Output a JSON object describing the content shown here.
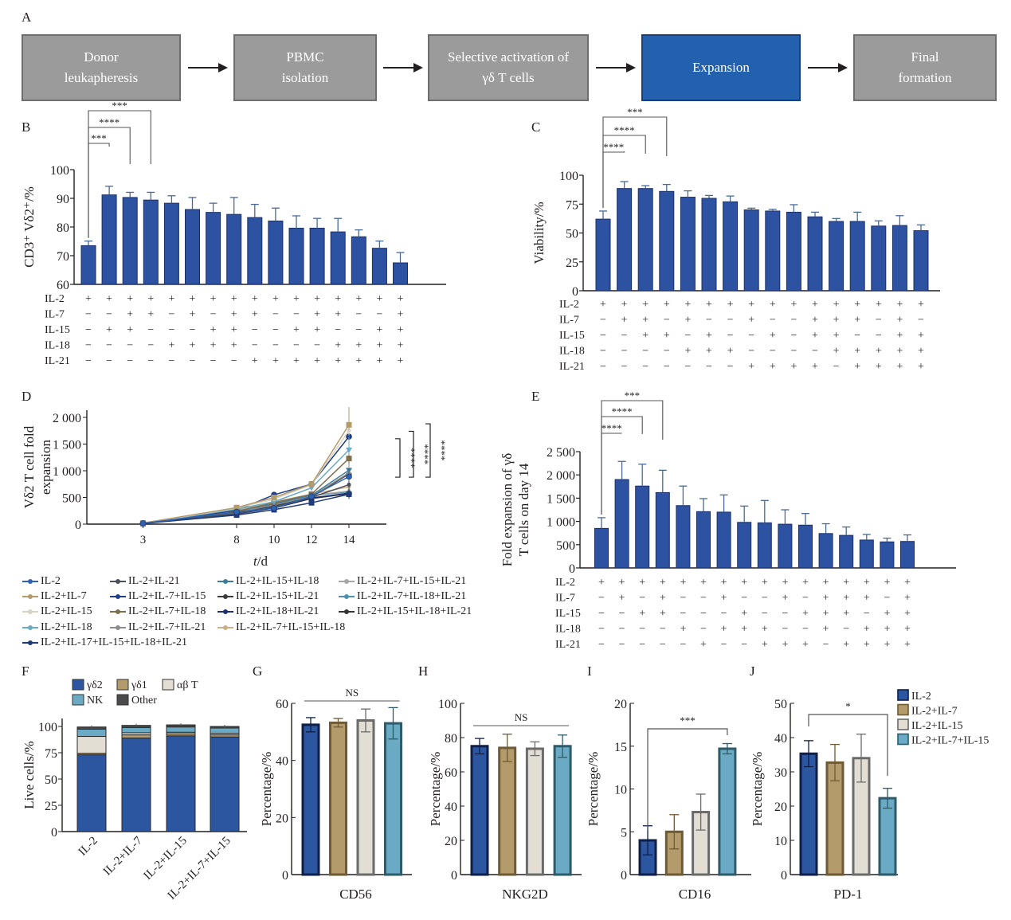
{
  "panel_letters": [
    "A",
    "B",
    "C",
    "D",
    "E",
    "F",
    "G",
    "H",
    "I",
    "J"
  ],
  "flow": {
    "steps": [
      {
        "label": "Donor\nleukapheresis",
        "active": false
      },
      {
        "label": "PBMC\nisolation",
        "active": false
      },
      {
        "label": "Selective activation of\nγδ T cells",
        "active": false
      },
      {
        "label": "Expansion",
        "active": true
      },
      {
        "label": "Final\nformation",
        "active": false
      }
    ]
  },
  "colors": {
    "bar_blue": "#2e52a2",
    "bar_edge": "#1a2f66",
    "err": "#4a6a96",
    "gd2": "#2c56a0",
    "gd1": "#b49b6c",
    "ab": "#e2ded4",
    "nk": "#6aaac4",
    "other": "#4b4b4b",
    "flow_gray": "#9b9b9b",
    "flow_blue": "#2360ae"
  },
  "row_labels": [
    "IL-2",
    "IL-7",
    "IL-15",
    "IL-18",
    "IL-21"
  ],
  "chart_data": [
    {
      "id": "B",
      "type": "bar",
      "ylabel": "CD3⁺ Vδ2⁺/%",
      "ylim": [
        60,
        100
      ],
      "yticks": [
        60,
        70,
        80,
        90,
        100
      ],
      "values": [
        73.5,
        91.2,
        90.3,
        89.4,
        88.3,
        86.1,
        85.1,
        84.4,
        83.3,
        82.1,
        79.6,
        79.6,
        78.3,
        76.6,
        72.6,
        67.5
      ],
      "errors": [
        1.6,
        3.0,
        1.8,
        2.7,
        2.6,
        4.2,
        3.2,
        5.9,
        4.6,
        4.5,
        4.3,
        3.4,
        4.7,
        2.4,
        2.5,
        3.6
      ],
      "conditions": {
        "IL-2": [
          "+",
          "+",
          "+",
          "+",
          "+",
          "+",
          "+",
          "+",
          "+",
          "+",
          "+",
          "+",
          "+",
          "+",
          "+",
          "+"
        ],
        "IL-7": [
          "−",
          "−",
          "+",
          "+",
          "−",
          "+",
          "−",
          "+",
          "+",
          "−",
          "−",
          "+",
          "+",
          "−",
          "−",
          "+"
        ],
        "IL-15": [
          "−",
          "+",
          "+",
          "−",
          "−",
          "−",
          "+",
          "+",
          "−",
          "−",
          "+",
          "+",
          "−",
          "−",
          "+",
          "+"
        ],
        "IL-18": [
          "−",
          "−",
          "−",
          "−",
          "+",
          "+",
          "+",
          "+",
          "−",
          "−",
          "−",
          "−",
          "+",
          "+",
          "+",
          "+"
        ],
        "IL-21": [
          "−",
          "−",
          "−",
          "−",
          "−",
          "−",
          "−",
          "−",
          "+",
          "+",
          "+",
          "+",
          "+",
          "+",
          "+",
          "+"
        ]
      },
      "significance": [
        {
          "from": 0,
          "to": 1,
          "label": "***"
        },
        {
          "from": 0,
          "to": 2,
          "label": "****"
        },
        {
          "from": 0,
          "to": 3,
          "label": "***"
        }
      ]
    },
    {
      "id": "C",
      "type": "bar",
      "ylabel": "Viability/%",
      "ylim": [
        0,
        100
      ],
      "yticks": [
        0,
        25,
        50,
        75,
        100
      ],
      "values": [
        62,
        88.5,
        88.5,
        86,
        81,
        80,
        77,
        70,
        69,
        68,
        64,
        60,
        60,
        56,
        56.5,
        52
      ],
      "errors": [
        7,
        6,
        2.5,
        6,
        5.5,
        2.5,
        5,
        1.5,
        1.5,
        6.5,
        4,
        2.5,
        8,
        4.5,
        8.5,
        5
      ],
      "conditions": {
        "IL-2": [
          "+",
          "+",
          "+",
          "+",
          "+",
          "+",
          "+",
          "+",
          "+",
          "+",
          "+",
          "+",
          "+",
          "+",
          "+",
          "+"
        ],
        "IL-7": [
          "−",
          "+",
          "+",
          "−",
          "+",
          "−",
          "−",
          "+",
          "−",
          "−",
          "+",
          "+",
          "+",
          "−",
          "+",
          "−"
        ],
        "IL-15": [
          "−",
          "−",
          "+",
          "+",
          "−",
          "+",
          "−",
          "−",
          "+",
          "−",
          "+",
          "+",
          "−",
          "−",
          "+",
          "+"
        ],
        "IL-18": [
          "−",
          "−",
          "−",
          "−",
          "+",
          "+",
          "+",
          "−",
          "−",
          "−",
          "−",
          "+",
          "+",
          "+",
          "+",
          "+"
        ],
        "IL-21": [
          "−",
          "−",
          "−",
          "−",
          "−",
          "−",
          "−",
          "+",
          "+",
          "+",
          "+",
          "−",
          "+",
          "+",
          "+",
          "+"
        ]
      },
      "significance": [
        {
          "from": 0,
          "to": 1,
          "label": "****"
        },
        {
          "from": 0,
          "to": 2,
          "label": "****"
        },
        {
          "from": 0,
          "to": 3,
          "label": "***"
        }
      ]
    },
    {
      "id": "D",
      "type": "line",
      "xlabel": "t/d",
      "ylabel": "Vδ2 T cell fold\nexpansion",
      "x": [
        3,
        8,
        10,
        12,
        14
      ],
      "xlim": [
        0,
        16
      ],
      "ylim": [
        0,
        2000
      ],
      "yticks": [
        0,
        500,
        1000,
        1500,
        2000
      ],
      "ytick_labels": [
        "0",
        "500",
        "1 000",
        "1 500",
        "2 000"
      ],
      "series": [
        {
          "name": "IL-2",
          "marker": "circle",
          "color": "#2d62b0",
          "values": [
            15,
            230,
            300,
            520,
            890
          ]
        },
        {
          "name": "IL-2+IL-7",
          "marker": "square",
          "color": "#b49b6c",
          "values": [
            20,
            310,
            500,
            750,
            1860
          ]
        },
        {
          "name": "IL-2+IL-15",
          "marker": "dash",
          "color": "#d6d2c6",
          "values": [
            18,
            300,
            470,
            740,
            1750
          ]
        },
        {
          "name": "IL-2+IL-18",
          "marker": "triangle-down",
          "color": "#6aaac4",
          "values": [
            16,
            280,
            420,
            680,
            1390
          ]
        },
        {
          "name": "IL-2+IL-17+IL-15+IL-18+IL-21",
          "marker": "square-dot",
          "color": "#1f3a78",
          "values": [
            12,
            170,
            270,
            400,
            560
          ]
        },
        {
          "name": "IL-2+IL-21",
          "marker": "plus",
          "color": "#4b4f5c",
          "values": [
            14,
            200,
            320,
            500,
            740
          ]
        },
        {
          "name": "IL-2+IL-7+IL-15",
          "marker": "circle",
          "color": "#1f3f86",
          "values": [
            18,
            260,
            550,
            750,
            1640
          ]
        },
        {
          "name": "IL-2+IL-7+IL-18",
          "marker": "square",
          "color": "#7d6e4c",
          "values": [
            16,
            240,
            400,
            560,
            1230
          ]
        },
        {
          "name": "IL-2+IL-7+IL-21",
          "marker": "triangle",
          "color": "#8c8c8c",
          "values": [
            15,
            220,
            360,
            520,
            960
          ]
        },
        {
          "name": "IL-2+IL-15+IL-18",
          "marker": "triangle-down",
          "color": "#3f7c9a",
          "values": [
            15,
            230,
            380,
            540,
            1010
          ]
        },
        {
          "name": "IL-2+IL-15+IL-21",
          "marker": "diamond",
          "color": "#3c3c3c",
          "values": [
            14,
            210,
            340,
            510,
            940
          ]
        },
        {
          "name": "IL-2+IL-18+IL-21",
          "marker": "diamond",
          "color": "#1b2f6a",
          "values": [
            14,
            190,
            310,
            490,
            580
          ]
        },
        {
          "name": "IL-2+IL-7+IL-15+IL-18",
          "marker": "star",
          "color": "#c8b08a",
          "values": [
            16,
            260,
            420,
            560,
            700
          ]
        },
        {
          "name": "IL-2+IL-7+IL-15+IL-21",
          "marker": "plus",
          "color": "#a6a6a6",
          "values": [
            15,
            250,
            400,
            540,
            620
          ]
        },
        {
          "name": "IL-2+IL-7+IL-18+IL-21",
          "marker": "x",
          "color": "#4d8fae",
          "values": [
            15,
            240,
            380,
            540,
            600
          ]
        },
        {
          "name": "IL-2+IL-15+IL-18+IL-21",
          "marker": "circle",
          "color": "#333333",
          "values": [
            13,
            200,
            300,
            480,
            570
          ]
        }
      ],
      "significance": [
        {
          "label": "****",
          "y_from": 880,
          "y_to": 1600
        },
        {
          "label": "****",
          "y_from": 880,
          "y_to": 1740
        },
        {
          "label": "****",
          "y_from": 880,
          "y_to": 1880
        }
      ]
    },
    {
      "id": "E",
      "type": "bar",
      "ylabel": "Fold expansion of γδ\nT cells on day 14",
      "ylim": [
        0,
        2500
      ],
      "yticks": [
        0,
        500,
        1000,
        1500,
        2000,
        2500
      ],
      "ytick_labels": [
        "0",
        "500",
        "1 000",
        "1 500",
        "2 000",
        "2 500"
      ],
      "values": [
        850,
        1900,
        1760,
        1620,
        1340,
        1210,
        1200,
        980,
        970,
        940,
        920,
        740,
        700,
        600,
        560,
        570
      ],
      "errors": [
        230,
        390,
        470,
        480,
        420,
        280,
        370,
        350,
        480,
        310,
        250,
        210,
        180,
        120,
        80,
        140
      ],
      "conditions": {
        "IL-2": [
          "+",
          "+",
          "+",
          "+",
          "+",
          "+",
          "+",
          "+",
          "+",
          "+",
          "+",
          "+",
          "+",
          "+",
          "+",
          "+"
        ],
        "IL-7": [
          "−",
          "+",
          "−",
          "+",
          "−",
          "−",
          "+",
          "−",
          "−",
          "+",
          "−",
          "+",
          "+",
          "+",
          "−",
          "+"
        ],
        "IL-15": [
          "−",
          "−",
          "+",
          "+",
          "−",
          "−",
          "−",
          "+",
          "−",
          "−",
          "+",
          "+",
          "+",
          "−",
          "+",
          "+"
        ],
        "IL-18": [
          "−",
          "−",
          "−",
          "−",
          "+",
          "−",
          "+",
          "+",
          "+",
          "−",
          "−",
          "+",
          "−",
          "+",
          "+",
          "+"
        ],
        "IL-21": [
          "−",
          "−",
          "−",
          "−",
          "−",
          "+",
          "−",
          "−",
          "+",
          "+",
          "+",
          "−",
          "+",
          "+",
          "+",
          "+"
        ]
      },
      "significance": [
        {
          "from": 0,
          "to": 1,
          "label": "****"
        },
        {
          "from": 0,
          "to": 2,
          "label": "****"
        },
        {
          "from": 0,
          "to": 3,
          "label": "***"
        }
      ]
    },
    {
      "id": "F",
      "type": "bar",
      "stacked": true,
      "ylabel": "Live cells/%",
      "ylim": [
        0,
        100
      ],
      "yticks": [
        0,
        25,
        50,
        75,
        100
      ],
      "categories": [
        "IL-2",
        "IL-2+IL-7",
        "IL-2+IL-15",
        "IL-2+IL-7+IL-15"
      ],
      "series": [
        {
          "name": "γδ2",
          "values": [
            73,
            89,
            91,
            90
          ]
        },
        {
          "name": "γδ1",
          "values": [
            1.5,
            3,
            2,
            2
          ]
        },
        {
          "name": "αβ T",
          "values": [
            16,
            2,
            1.5,
            1.5
          ]
        },
        {
          "name": "NK",
          "values": [
            7,
            5,
            5,
            5
          ]
        },
        {
          "name": "Other",
          "values": [
            2,
            2,
            2,
            1.5
          ]
        }
      ]
    },
    {
      "id": "G",
      "type": "bar",
      "xlabel": "CD56",
      "ylabel": "Percentage/%",
      "ylim": [
        0,
        60
      ],
      "yticks": [
        0,
        20,
        40,
        60
      ],
      "categories": [
        "IL-2",
        "IL-2+IL-7",
        "IL-2+IL-15",
        "IL-2+IL-7+IL-15"
      ],
      "values": [
        52.5,
        53.2,
        54,
        53
      ],
      "errors": [
        2.5,
        1.5,
        4,
        5.5
      ],
      "significance": [
        {
          "from": 0,
          "to": 3,
          "label": "NS"
        }
      ]
    },
    {
      "id": "H",
      "type": "bar",
      "xlabel": "NKG2D",
      "ylabel": "Percentage/%",
      "ylim": [
        0,
        100
      ],
      "yticks": [
        0,
        20,
        40,
        60,
        80,
        100
      ],
      "categories": [
        "IL-2",
        "IL-2+IL-7",
        "IL-2+IL-15",
        "IL-2+IL-7+IL-15"
      ],
      "values": [
        75,
        74,
        73.5,
        75
      ],
      "errors": [
        4.5,
        8,
        4,
        6.5
      ],
      "significance": [
        {
          "from": 0,
          "to": 3,
          "label": "NS"
        }
      ]
    },
    {
      "id": "I",
      "type": "bar",
      "xlabel": "CD16",
      "ylabel": "Percentage/%",
      "ylim": [
        0,
        20
      ],
      "yticks": [
        0,
        5,
        10,
        15,
        20
      ],
      "categories": [
        "IL-2",
        "IL-2+IL-7",
        "IL-2+IL-15",
        "IL-2+IL-7+IL-15"
      ],
      "values": [
        4,
        5,
        7.3,
        14.7
      ],
      "errors": [
        1.7,
        2,
        2.1,
        0.6
      ],
      "significance": [
        {
          "from": 0,
          "to": 3,
          "label": "***"
        }
      ]
    },
    {
      "id": "J",
      "type": "bar",
      "xlabel": "PD-1",
      "ylabel": "Percentage/%",
      "ylim": [
        0,
        50
      ],
      "yticks": [
        0,
        10,
        20,
        30,
        40,
        50
      ],
      "categories": [
        "IL-2",
        "IL-2+IL-7",
        "IL-2+IL-15",
        "IL-2+IL-7+IL-15"
      ],
      "values": [
        35.3,
        32.7,
        34,
        22.3
      ],
      "errors": [
        3.8,
        5.3,
        7,
        2.9
      ],
      "significance": [
        {
          "from": 0,
          "to": 3,
          "label": "*"
        }
      ],
      "legend": [
        "IL-2",
        "IL-2+IL-7",
        "IL-2+IL-15",
        "IL-2+IL-7+IL-15"
      ]
    }
  ]
}
